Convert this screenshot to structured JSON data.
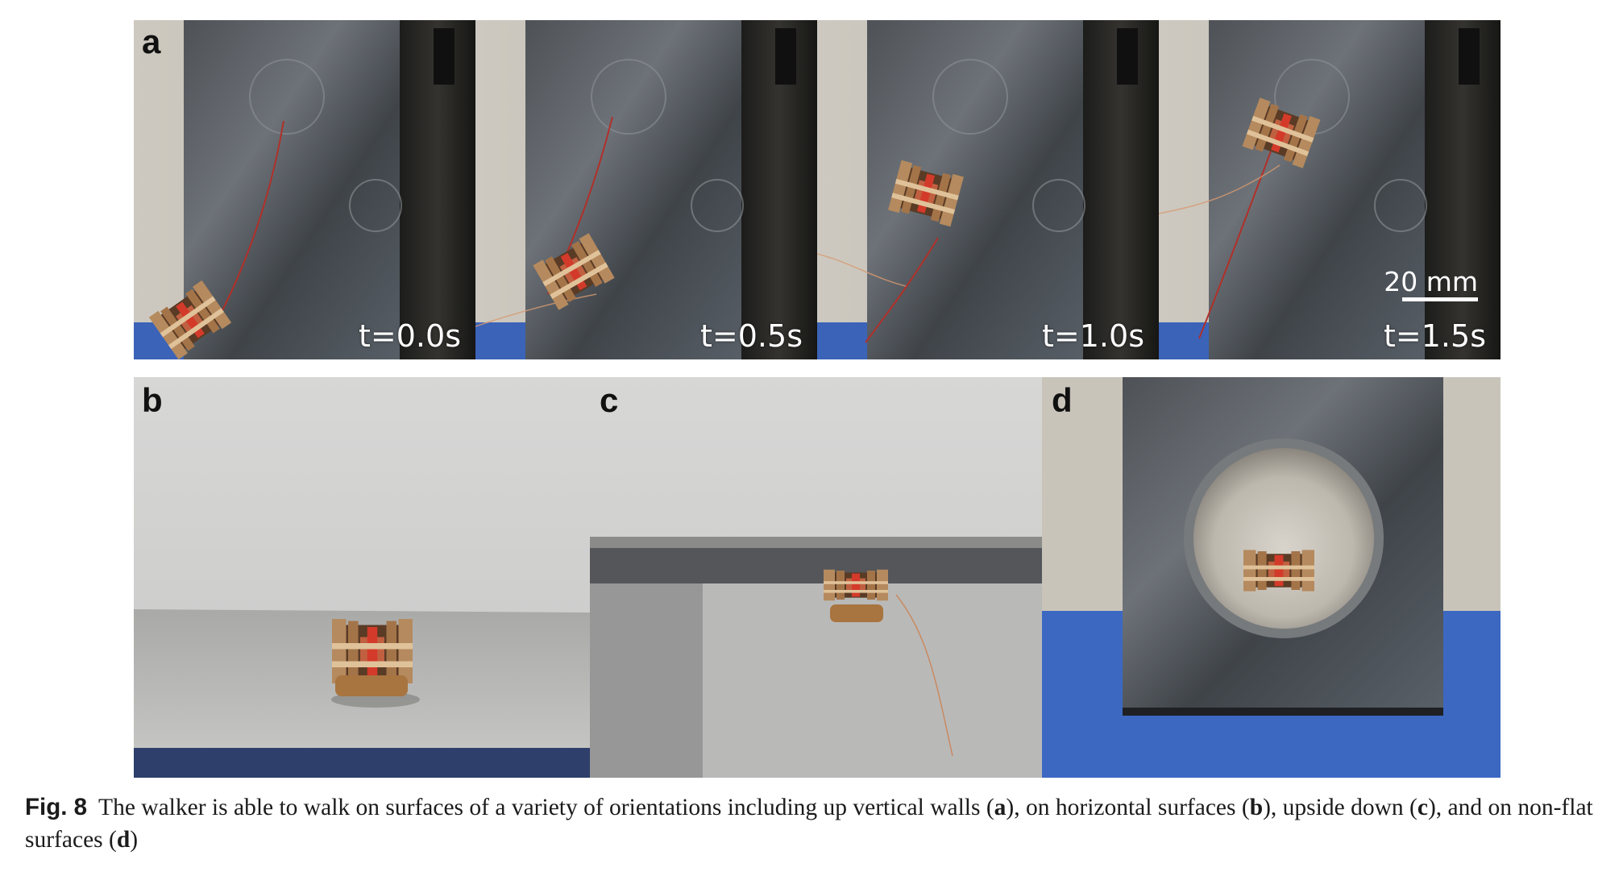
{
  "figure": {
    "panels": {
      "a": {
        "label": "a",
        "frames": [
          {
            "time": "t=0.0s"
          },
          {
            "time": "t=0.5s"
          },
          {
            "time": "t=1.0s"
          },
          {
            "time": "t=1.5s",
            "scale_bar": "20 mm"
          }
        ]
      },
      "b": {
        "label": "b"
      },
      "c": {
        "label": "c"
      },
      "d": {
        "label": "d"
      }
    },
    "caption": {
      "fig_label": "Fig. 8",
      "text": "The walker is able to walk on surfaces of a variety of orientations including up vertical walls (",
      "a": "a",
      "t1": "), on horizontal surfaces (",
      "b": "b",
      "t2": "), upside down (",
      "c": "c",
      "t3": "), and on non-flat surfaces (",
      "d": "d",
      "t4": ")"
    }
  }
}
